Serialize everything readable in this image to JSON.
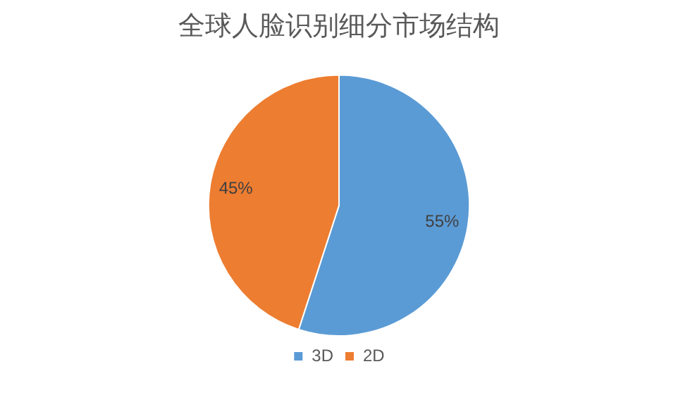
{
  "chart_data": {
    "type": "pie",
    "title": "全球人脸识别细分市场结构",
    "categories": [
      "3D",
      "2D"
    ],
    "values": [
      55,
      45
    ],
    "value_labels": [
      "55%",
      "45%"
    ],
    "colors": [
      "#5b9bd5",
      "#ed7d31"
    ],
    "legend": "bottom"
  }
}
